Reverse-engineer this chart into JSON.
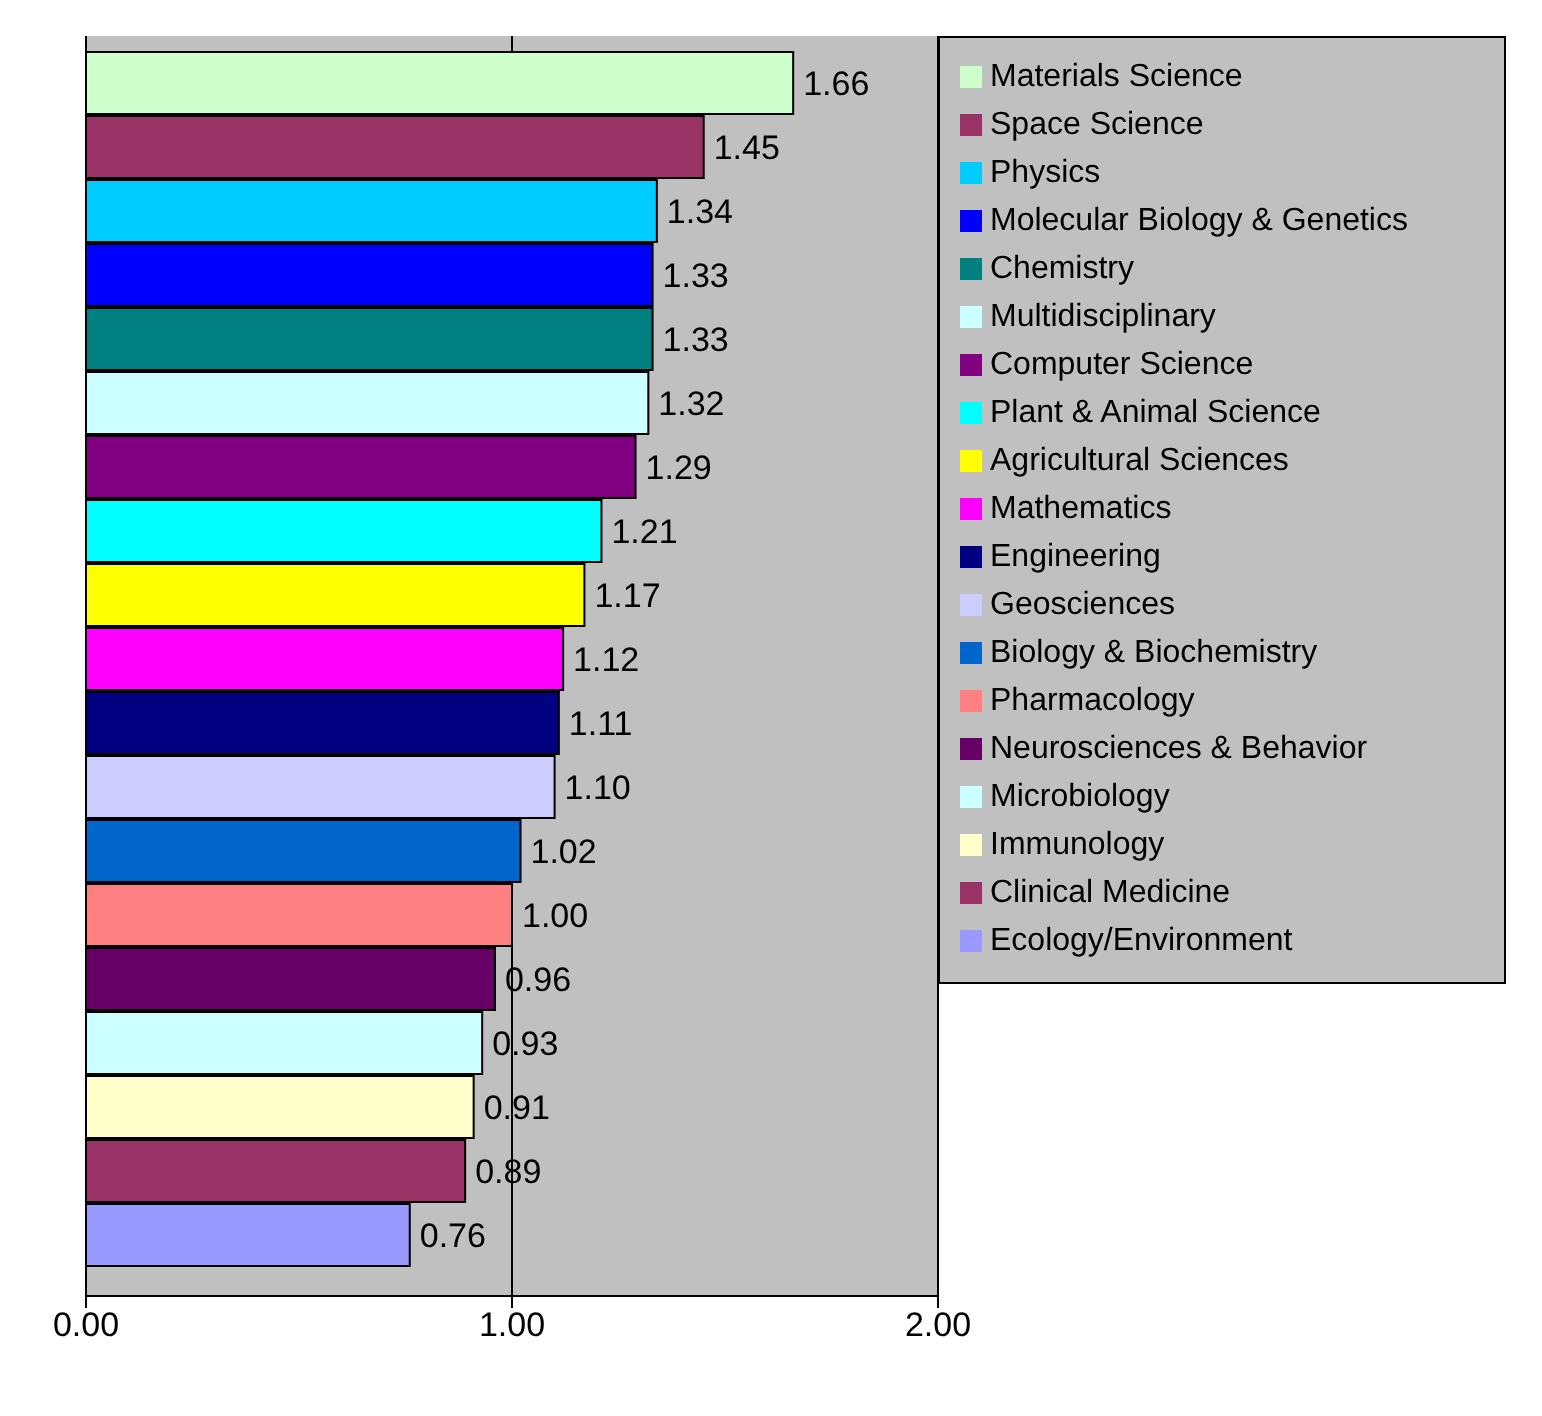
{
  "chart_data": {
    "type": "bar",
    "orientation": "horizontal",
    "categories": [
      null
    ],
    "xlim": [
      0,
      2
    ],
    "xticks": [
      {
        "value": 0,
        "label": "0.00"
      },
      {
        "value": 1,
        "label": "1.00"
      },
      {
        "value": 2,
        "label": "2.00"
      }
    ],
    "grid": "x",
    "legend": "right",
    "tick_labels": "x",
    "series": [
      {
        "name": "Materials Science",
        "color": "#ccffcc",
        "values": [
          1.66
        ],
        "value_labels": [
          "1.66"
        ]
      },
      {
        "name": "Space Science",
        "color": "#993366",
        "values": [
          1.45
        ],
        "value_labels": [
          "1.45"
        ]
      },
      {
        "name": "Physics",
        "color": "#00ccff",
        "values": [
          1.34
        ],
        "value_labels": [
          "1.34"
        ]
      },
      {
        "name": "Molecular Biology & Genetics",
        "color": "#0000ff",
        "values": [
          1.33
        ],
        "value_labels": [
          "1.33"
        ]
      },
      {
        "name": "Chemistry",
        "color": "#008080",
        "values": [
          1.33
        ],
        "value_labels": [
          "1.33"
        ]
      },
      {
        "name": "Multidisciplinary",
        "color": "#ccffff",
        "values": [
          1.32
        ],
        "value_labels": [
          "1.32"
        ]
      },
      {
        "name": "Computer Science",
        "color": "#800080",
        "values": [
          1.29
        ],
        "value_labels": [
          "1.29"
        ]
      },
      {
        "name": "Plant & Animal Science",
        "color": "#00ffff",
        "values": [
          1.21
        ],
        "value_labels": [
          "1.21"
        ]
      },
      {
        "name": "Agricultural Sciences",
        "color": "#ffff00",
        "values": [
          1.17
        ],
        "value_labels": [
          "1.17"
        ]
      },
      {
        "name": "Mathematics",
        "color": "#ff00ff",
        "values": [
          1.12
        ],
        "value_labels": [
          "1.12"
        ]
      },
      {
        "name": "Engineering",
        "color": "#000080",
        "values": [
          1.11
        ],
        "value_labels": [
          "1.11"
        ]
      },
      {
        "name": "Geosciences",
        "color": "#ccccff",
        "values": [
          1.1
        ],
        "value_labels": [
          "1.10"
        ]
      },
      {
        "name": "Biology & Biochemistry",
        "color": "#0066cc",
        "values": [
          1.02
        ],
        "value_labels": [
          "1.02"
        ]
      },
      {
        "name": "Pharmacology",
        "color": "#ff8080",
        "values": [
          1.0
        ],
        "value_labels": [
          "1.00"
        ]
      },
      {
        "name": "Neurosciences & Behavior",
        "color": "#660066",
        "values": [
          0.96
        ],
        "value_labels": [
          "0.96"
        ]
      },
      {
        "name": "Microbiology",
        "color": "#ccffff",
        "values": [
          0.93
        ],
        "value_labels": [
          "0.93"
        ]
      },
      {
        "name": "Immunology",
        "color": "#ffffcc",
        "values": [
          0.91
        ],
        "value_labels": [
          "0.91"
        ]
      },
      {
        "name": "Clinical Medicine",
        "color": "#993366",
        "values": [
          0.89
        ],
        "value_labels": [
          "0.89"
        ]
      },
      {
        "name": "Ecology/Environment",
        "color": "#9999ff",
        "values": [
          0.76
        ],
        "value_labels": [
          "0.76"
        ]
      }
    ]
  }
}
